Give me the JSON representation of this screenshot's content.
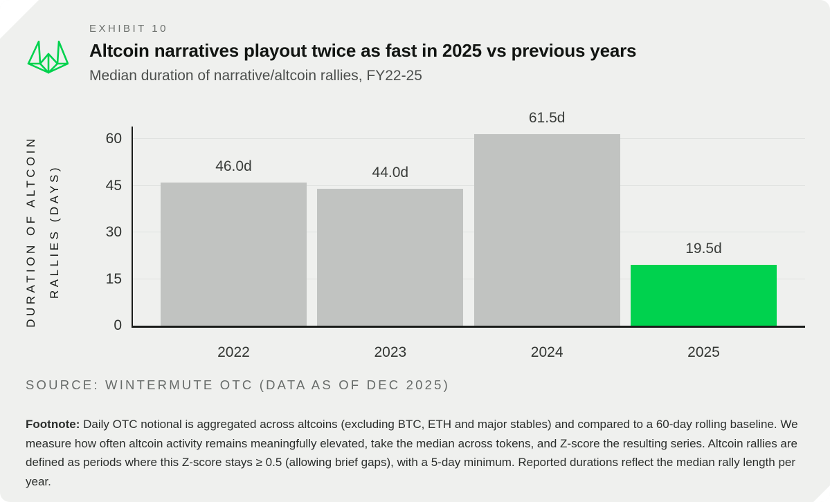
{
  "card": {
    "background": "#EFF0EE"
  },
  "brand": {
    "logo": "wintermute-logo",
    "green": "#00D24E"
  },
  "header": {
    "exhibit": "EXHIBIT 10",
    "title": "Altcoin narratives playout twice as fast in 2025 vs previous years",
    "subtitle": "Median duration of narrative/altcoin rallies, FY22-25"
  },
  "chart_data": {
    "type": "bar",
    "categories": [
      "2022",
      "2023",
      "2024",
      "2025"
    ],
    "values": [
      46.0,
      44.0,
      61.5,
      19.5
    ],
    "value_labels": [
      "46.0d",
      "44.0d",
      "61.5d",
      "19.5d"
    ],
    "ylabel": "DURATION OF ALTCOIN RALLIES (DAYS)",
    "ylabel_lines": [
      "DURATION OF ALTCOIN",
      "RALLIES (DAYS)"
    ],
    "yticks": [
      0,
      15,
      30,
      45,
      60
    ],
    "ylim": [
      0,
      64
    ],
    "grid": true,
    "legend": "none",
    "bar_colors": [
      "#C1C3C1",
      "#C1C3C1",
      "#C1C3C1",
      "#00D24E"
    ],
    "highlight_index": 3
  },
  "source": "SOURCE: WINTERMUTE OTC (DATA AS OF DEC 2025)",
  "footnote": {
    "label": "Footnote:",
    "text": "Daily OTC notional is aggregated across altcoins (excluding BTC, ETH and major stables) and compared to a 60-day rolling baseline. We measure how often altcoin activity remains meaningfully elevated, take the median across tokens, and Z-score the resulting series. Altcoin rallies are defined as periods where this Z-score stays ≥ 0.5 (allowing brief gaps), with a 5-day minimum. Reported durations reflect the median rally length per year."
  }
}
